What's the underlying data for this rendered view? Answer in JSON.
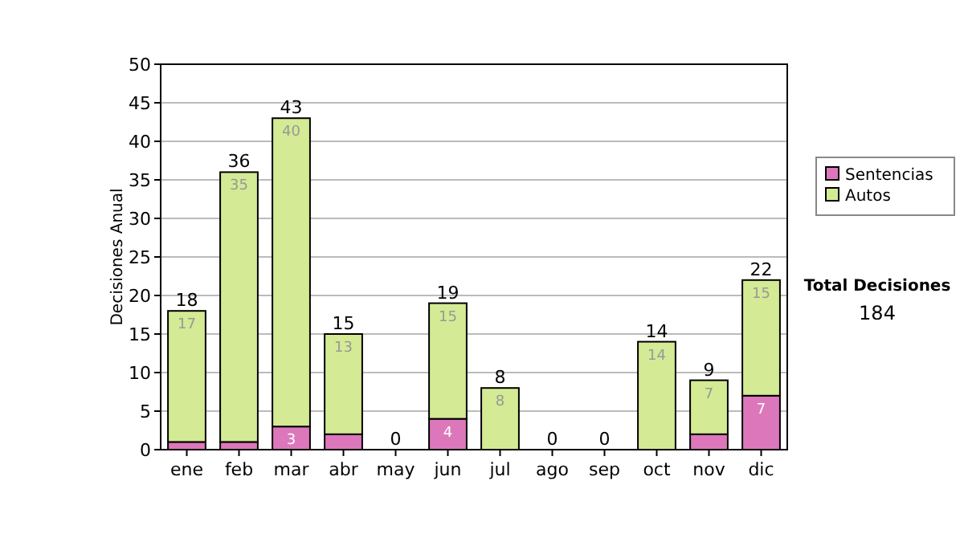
{
  "chart_data": {
    "type": "bar",
    "stacked": true,
    "ylabel": "Decisiones Anual",
    "categories": [
      "ene",
      "feb",
      "mar",
      "abr",
      "may",
      "jun",
      "jul",
      "ago",
      "sep",
      "oct",
      "nov",
      "dic"
    ],
    "series": [
      {
        "name": "Sentencias",
        "color": "#dd77bb",
        "values": [
          1,
          1,
          3,
          2,
          0,
          4,
          0,
          0,
          0,
          0,
          2,
          7
        ],
        "value_labels": [
          null,
          null,
          "3",
          null,
          null,
          "4",
          null,
          null,
          null,
          null,
          null,
          "7"
        ]
      },
      {
        "name": "Autos",
        "color": "#d4ea94",
        "values": [
          17,
          35,
          40,
          13,
          0,
          15,
          8,
          0,
          0,
          14,
          7,
          15
        ],
        "value_labels": [
          "17",
          "35",
          "40",
          "13",
          null,
          "15",
          "8",
          null,
          null,
          "14",
          "7",
          "15"
        ]
      }
    ],
    "totals": [
      "18",
      "36",
      "43",
      "15",
      "0",
      "19",
      "8",
      "0",
      "0",
      "14",
      "9",
      "22"
    ],
    "ylim": [
      0,
      50
    ],
    "yticks": [
      0,
      5,
      10,
      15,
      20,
      25,
      30,
      35,
      40,
      45,
      50
    ],
    "grid": "y",
    "legend": "right",
    "annotations": [
      "Total Decisiones",
      "184"
    ]
  }
}
